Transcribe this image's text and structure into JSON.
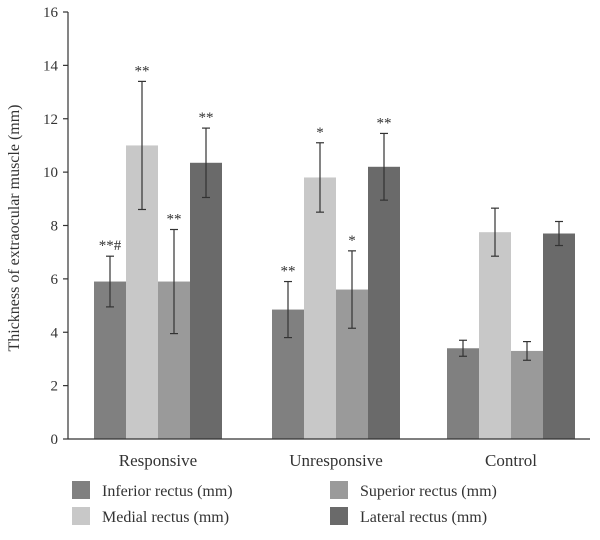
{
  "chart_data": {
    "type": "bar",
    "title": "",
    "xlabel": "",
    "ylabel": "Thickness of extraocular muscle (mm)",
    "ylim": [
      0,
      16
    ],
    "yticks": [
      0,
      2,
      4,
      6,
      8,
      10,
      12,
      14,
      16
    ],
    "grid": false,
    "legend_position": "bottom",
    "categories": [
      "Responsive",
      "Unresponsive",
      "Control"
    ],
    "series": [
      {
        "name": "Inferior rectus (mm)",
        "color": "#808080",
        "values": [
          5.9,
          4.85,
          3.4
        ],
        "errors": [
          0.95,
          1.05,
          0.3
        ],
        "annotations": [
          "**#",
          "**",
          ""
        ]
      },
      {
        "name": "Medial rectus (mm)",
        "color": "#c8c8c8",
        "values": [
          11.0,
          9.8,
          7.75
        ],
        "errors": [
          2.4,
          1.3,
          0.9
        ],
        "annotations": [
          "**",
          "*",
          ""
        ]
      },
      {
        "name": "Superior rectus (mm)",
        "color": "#9a9a9a",
        "values": [
          5.9,
          5.6,
          3.3
        ],
        "errors": [
          1.95,
          1.45,
          0.35
        ],
        "annotations": [
          "**",
          "*",
          ""
        ]
      },
      {
        "name": "Lateral rectus (mm)",
        "color": "#6a6a6a",
        "values": [
          10.35,
          10.2,
          7.7
        ],
        "errors": [
          1.3,
          1.25,
          0.45
        ],
        "annotations": [
          "**",
          "**",
          ""
        ]
      }
    ]
  }
}
